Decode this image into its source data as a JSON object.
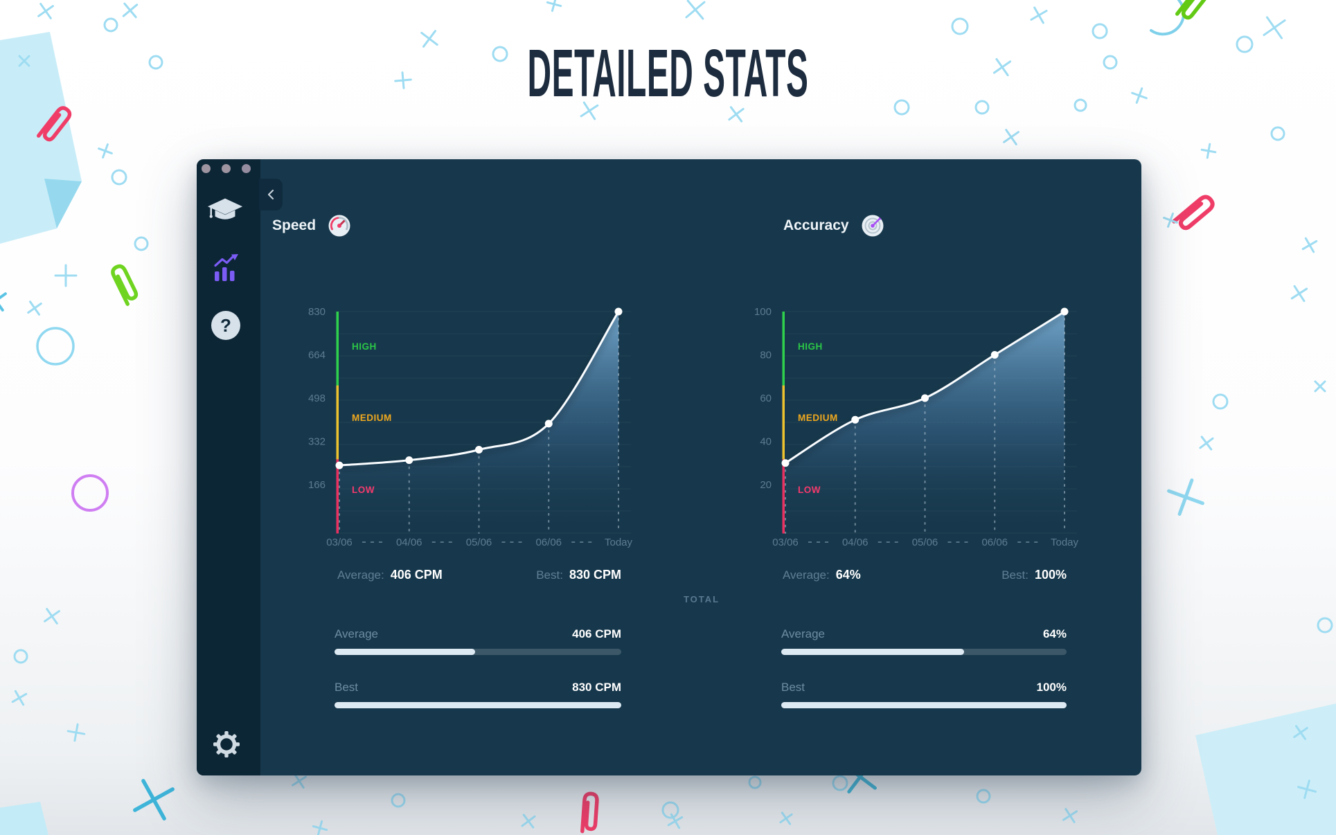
{
  "page": {
    "title": "DETAILED STATS"
  },
  "window": {
    "controls": [
      "close",
      "minimize",
      "zoom"
    ],
    "sidebar": {
      "items": [
        {
          "name": "lessons",
          "icon": "graduation-cap-icon"
        },
        {
          "name": "stats",
          "icon": "bar-chart-icon",
          "active": true
        },
        {
          "name": "help",
          "icon": "question-mark-icon"
        }
      ],
      "help_glyph": "?",
      "settings_icon": "gear-icon"
    },
    "back_button_icon": "chevron-left-icon"
  },
  "chart_data": [
    {
      "type": "line",
      "name": "speed",
      "title": "Speed",
      "icon": "speedometer-icon",
      "unit": "CPM",
      "categories": [
        "03/06",
        "04/06",
        "05/06",
        "06/06",
        "Today"
      ],
      "values": [
        240,
        260,
        300,
        400,
        830
      ],
      "yticks": [
        830,
        664,
        498,
        332,
        166
      ],
      "ylim": [
        0,
        830
      ],
      "grid": true,
      "legend_position": "none",
      "zones": [
        {
          "label": "HIGH",
          "color": "#2bc647"
        },
        {
          "label": "MEDIUM",
          "color": "#efa81f"
        },
        {
          "label": "LOW",
          "color": "#f43a6c"
        }
      ],
      "zone_bar_colors": [
        "#2ed04c",
        "#ecc22f",
        "#e93060"
      ],
      "line_color": "#fafdff",
      "stats": {
        "average_label": "Average:",
        "average_value": "406 CPM",
        "best_label": "Best:",
        "best_value": "830 CPM"
      }
    },
    {
      "type": "line",
      "name": "accuracy",
      "title": "Accuracy",
      "icon": "target-icon",
      "unit": "%",
      "categories": [
        "03/06",
        "04/06",
        "05/06",
        "06/06",
        "Today"
      ],
      "values": [
        30,
        50,
        60,
        80,
        100
      ],
      "yticks": [
        100,
        80,
        60,
        40,
        20
      ],
      "ylim": [
        0,
        100
      ],
      "grid": true,
      "legend_position": "none",
      "zones": [
        {
          "label": "HIGH",
          "color": "#2bc647"
        },
        {
          "label": "MEDIUM",
          "color": "#efa81f"
        },
        {
          "label": "LOW",
          "color": "#f43a6c"
        }
      ],
      "zone_bar_colors": [
        "#2ed04c",
        "#ecc22f",
        "#e93060"
      ],
      "line_color": "#fafdff",
      "stats": {
        "average_label": "Average:",
        "average_value": "64%",
        "best_label": "Best:",
        "best_value": "100%"
      }
    }
  ],
  "totals": {
    "heading": "TOTAL",
    "columns": [
      {
        "rows": [
          {
            "label": "Average",
            "value": "406 CPM",
            "percent": 49
          },
          {
            "label": "Best",
            "value": "830 CPM",
            "percent": 100
          }
        ]
      },
      {
        "rows": [
          {
            "label": "Average",
            "value": "64%",
            "percent": 64
          },
          {
            "label": "Best",
            "value": "100%",
            "percent": 100
          }
        ]
      }
    ]
  },
  "colors": {
    "panel": "#17384c",
    "sidebar": "#0d2636",
    "accent_purple": "#7b5cf5",
    "bar_fill": "#dde9f3"
  }
}
